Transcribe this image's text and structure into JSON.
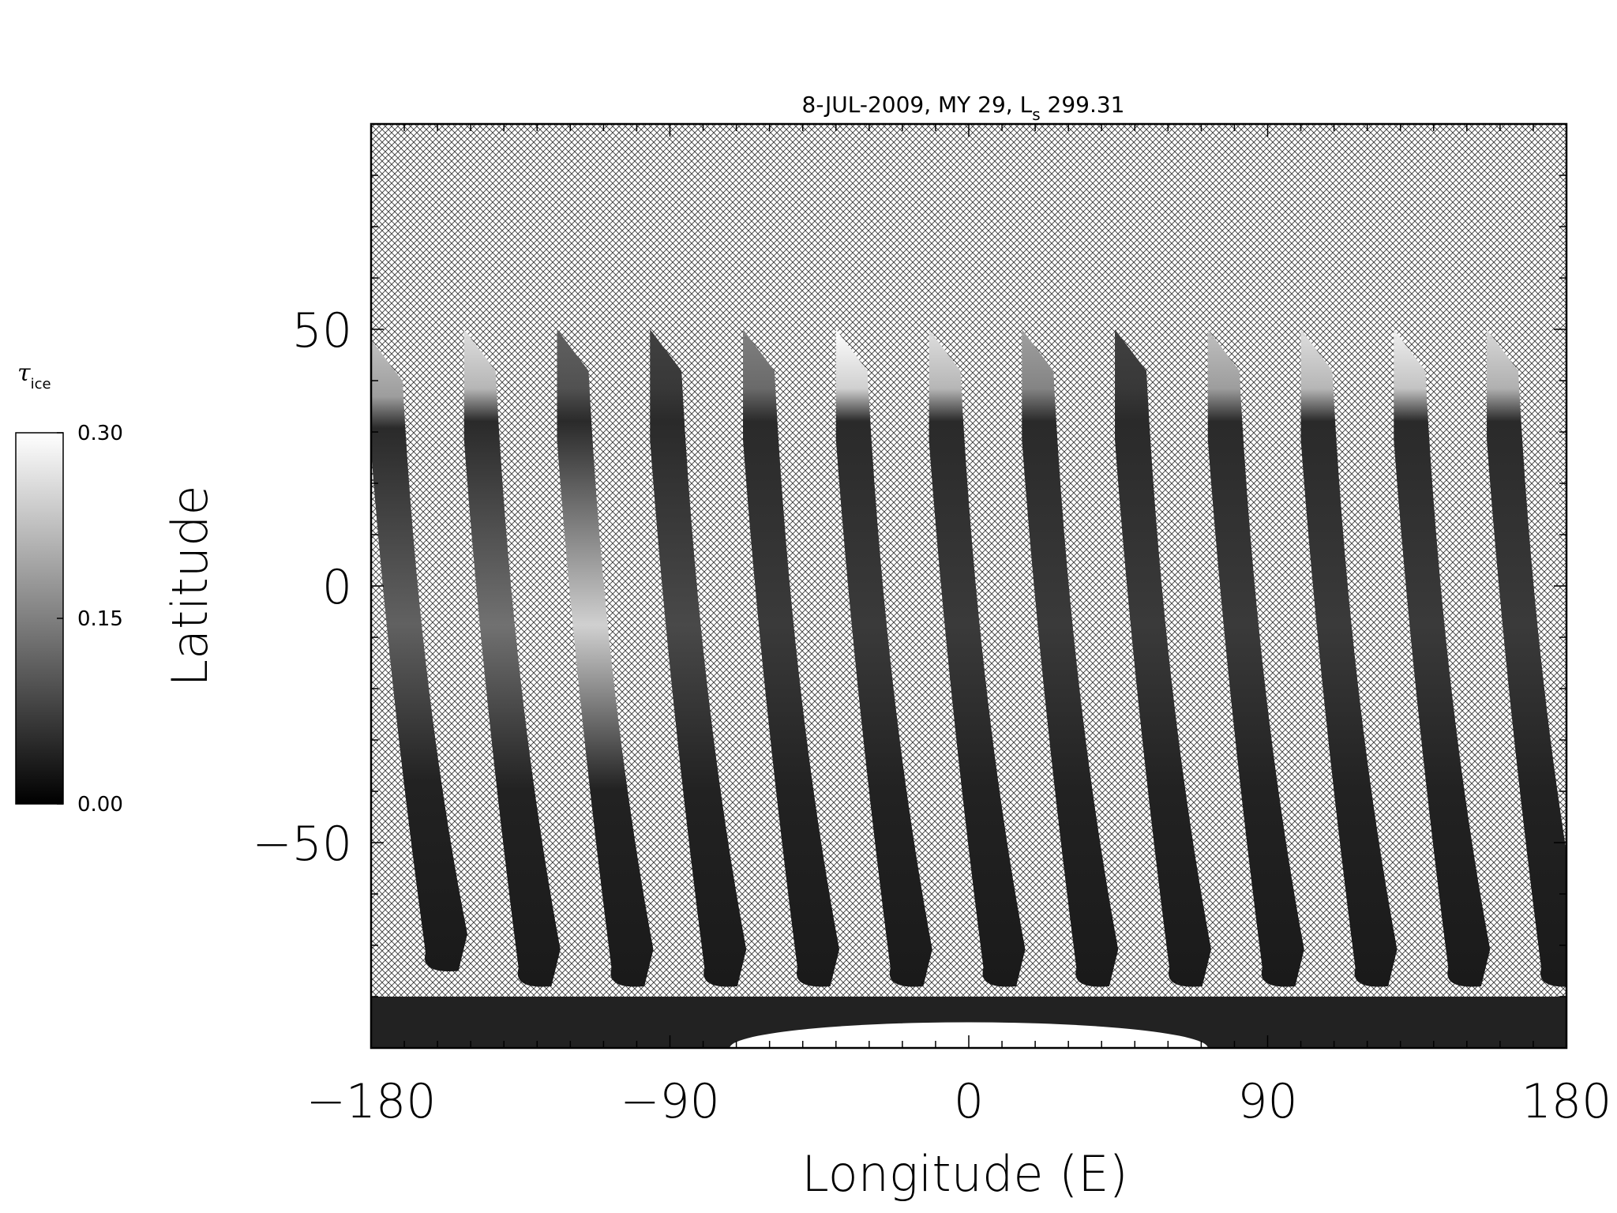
{
  "chart_data": {
    "type": "heatmap",
    "title_main": "8-JUL-2009, MY 29,  L",
    "title_sub": "s",
    "title_end": " 299.31",
    "xlabel": "Longitude (E)",
    "ylabel": "Latitude",
    "xlim": [
      -180,
      180
    ],
    "ylim": [
      -90,
      90
    ],
    "xticks": [
      -180,
      -90,
      0,
      90,
      180
    ],
    "xtick_labels": [
      "−180",
      "−90",
      "0",
      "90",
      "180"
    ],
    "yticks": [
      -50,
      0,
      50
    ],
    "ytick_labels": [
      "−50",
      "0",
      "50"
    ],
    "x_minor_step": 10,
    "y_minor_step": 10,
    "colorbar": {
      "label_symbol": "τ",
      "label_sub": "ice",
      "range": [
        0,
        0.3
      ],
      "ticks": [
        0,
        0.15,
        0.3
      ],
      "tick_labels": [
        "0.00",
        "0.15",
        "0.30"
      ],
      "colormap": "grayscale"
    },
    "no_data_pattern": "crosshatch",
    "swaths": [
      {
        "top_lon": -180,
        "top_lat": 48,
        "bottom_lon": -160,
        "bottom_lat": -75,
        "north_ice": 0.22,
        "peak_ice": 0.1
      },
      {
        "top_lon": -152,
        "top_lat": 50,
        "bottom_lon": -132,
        "bottom_lat": -78,
        "north_ice": 0.26,
        "peak_ice": 0.12
      },
      {
        "top_lon": -124,
        "top_lat": 50,
        "bottom_lon": -104,
        "bottom_lat": -78,
        "north_ice": 0.1,
        "peak_ice": 0.24
      },
      {
        "top_lon": -96,
        "top_lat": 50,
        "bottom_lon": -76,
        "bottom_lat": -78,
        "north_ice": 0.06,
        "peak_ice": 0.07
      },
      {
        "top_lon": -68,
        "top_lat": 50,
        "bottom_lon": -48,
        "bottom_lat": -78,
        "north_ice": 0.14,
        "peak_ice": 0.05
      },
      {
        "top_lon": -40,
        "top_lat": 50,
        "bottom_lon": -20,
        "bottom_lat": -78,
        "north_ice": 0.3,
        "peak_ice": 0.05
      },
      {
        "top_lon": -12,
        "top_lat": 50,
        "bottom_lon": 8,
        "bottom_lat": -78,
        "north_ice": 0.26,
        "peak_ice": 0.05
      },
      {
        "top_lon": 16,
        "top_lat": 50,
        "bottom_lon": 36,
        "bottom_lat": -78,
        "north_ice": 0.18,
        "peak_ice": 0.05
      },
      {
        "top_lon": 44,
        "top_lat": 50,
        "bottom_lon": 64,
        "bottom_lat": -78,
        "north_ice": 0.06,
        "peak_ice": 0.05
      },
      {
        "top_lon": 72,
        "top_lat": 50,
        "bottom_lon": 92,
        "bottom_lat": -78,
        "north_ice": 0.22,
        "peak_ice": 0.05
      },
      {
        "top_lon": 100,
        "top_lat": 50,
        "bottom_lon": 120,
        "bottom_lat": -78,
        "north_ice": 0.26,
        "peak_ice": 0.05
      },
      {
        "top_lon": 128,
        "top_lat": 50,
        "bottom_lon": 148,
        "bottom_lat": -78,
        "north_ice": 0.28,
        "peak_ice": 0.05
      },
      {
        "top_lon": 156,
        "top_lat": 50,
        "bottom_lon": 176,
        "bottom_lat": -78,
        "north_ice": 0.25,
        "peak_ice": 0.05
      }
    ],
    "south_polar_band": {
      "lat_top": -80,
      "lat_bottom": -90,
      "ice": 0.02
    },
    "south_polar_bright": {
      "lon_center": 0,
      "lat_top": -85,
      "ice": 0.3
    }
  }
}
